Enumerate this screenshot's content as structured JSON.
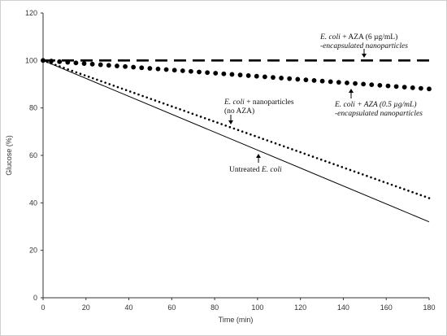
{
  "chart_data": {
    "type": "line",
    "xlabel": "Time (min)",
    "ylabel": "Glucose (%)",
    "xlim": [
      0,
      180
    ],
    "ylim": [
      0,
      120
    ],
    "x_ticks": [
      "0",
      "20",
      "40",
      "60",
      "80",
      "100",
      "120",
      "140",
      "160",
      "180"
    ],
    "y_ticks": [
      "0",
      "20",
      "40",
      "60",
      "80",
      "100",
      "120"
    ],
    "grid": false,
    "series": [
      {
        "key": "aza6",
        "style": "dashed",
        "color": "#000000",
        "x": [
          0,
          180
        ],
        "y": [
          100,
          100
        ]
      },
      {
        "key": "aza05",
        "style": "large-dots",
        "color": "#000000",
        "x": [
          0,
          180
        ],
        "y": [
          100,
          88
        ]
      },
      {
        "key": "nano",
        "style": "small-dots",
        "color": "#000000",
        "x": [
          0,
          180
        ],
        "y": [
          100,
          42
        ]
      },
      {
        "key": "untreated",
        "style": "solid",
        "color": "#000000",
        "x": [
          0,
          180
        ],
        "y": [
          100,
          32
        ]
      }
    ],
    "annotations": [
      {
        "key": "aza6",
        "line1_italic": "E. coli",
        "line1_rest": " + AZA (6 µg/mL)",
        "line2": "-encapsulated nanoparticles"
      },
      {
        "key": "aza05",
        "line1_italic": "E. coli",
        "line1_rest": " + AZA (0.5 µg/mL)",
        "line2": "-encapsulated nanoparticles"
      },
      {
        "key": "nano",
        "line1_italic": "E. coli",
        "line1_rest": " + nanoparticles",
        "line2": "(no AZA)"
      },
      {
        "key": "untreated",
        "line1_plain": "Untreated ",
        "line1_italic": "E. coli"
      }
    ]
  }
}
